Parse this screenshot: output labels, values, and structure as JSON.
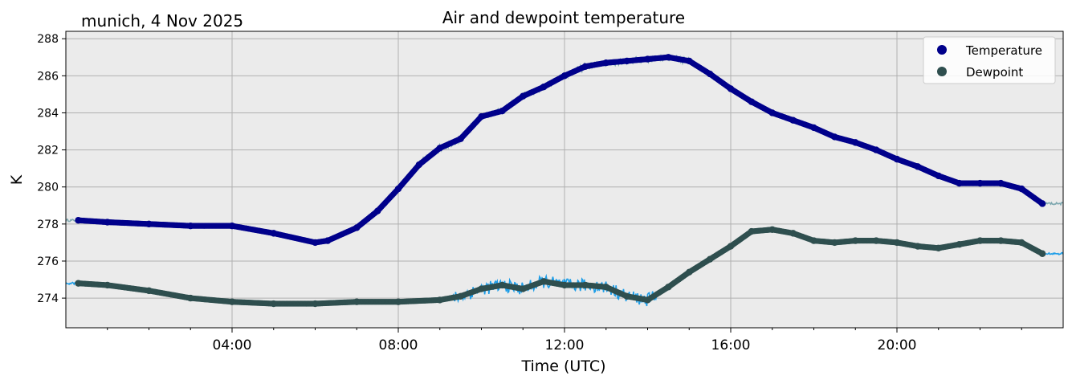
{
  "chart_data": {
    "type": "line",
    "title": "Air and dewpoint temperature",
    "location_label": "munich, 4 Nov 2025",
    "xlabel": "Time (UTC)",
    "ylabel": "K",
    "xlim_hours": [
      0,
      24
    ],
    "ylim": [
      272.4,
      288.4
    ],
    "x_ticks": [
      {
        "hour": 4,
        "label": "04:00"
      },
      {
        "hour": 8,
        "label": "08:00"
      },
      {
        "hour": 12,
        "label": "12:00"
      },
      {
        "hour": 16,
        "label": "16:00"
      },
      {
        "hour": 20,
        "label": "20:00"
      }
    ],
    "y_ticks": [
      274,
      276,
      278,
      280,
      282,
      284,
      286,
      288
    ],
    "grid": true,
    "legend_position": "top-right",
    "series": [
      {
        "name": "Temperature",
        "marker_color": "#00008b",
        "raw_color": "#7fa8b0",
        "x": [
          0.3,
          1,
          2,
          3,
          4,
          5,
          6,
          6.3,
          7,
          7.5,
          8,
          8.5,
          9,
          9.5,
          10,
          10.5,
          11,
          11.5,
          12,
          12.5,
          13,
          13.5,
          14,
          14.5,
          15,
          15.5,
          16,
          16.5,
          17,
          17.5,
          18,
          18.5,
          19,
          19.5,
          20,
          20.5,
          21,
          21.5,
          22,
          22.5,
          23,
          23.5
        ],
        "values": [
          278.2,
          278.1,
          278.0,
          277.9,
          277.9,
          277.5,
          277.0,
          277.1,
          277.8,
          278.7,
          279.9,
          281.2,
          282.1,
          282.6,
          283.8,
          284.1,
          284.9,
          285.4,
          286.0,
          286.5,
          286.7,
          286.8,
          286.9,
          287.0,
          286.8,
          286.1,
          285.3,
          284.6,
          284.0,
          283.6,
          283.2,
          282.7,
          282.4,
          282.0,
          281.5,
          281.1,
          280.6,
          280.2,
          280.2,
          280.2,
          279.9,
          279.1
        ]
      },
      {
        "name": "Dewpoint",
        "marker_color": "#2f4f4f",
        "raw_color": "#1e9ee8",
        "x": [
          0.3,
          1,
          2,
          3,
          4,
          5,
          6,
          7,
          8,
          9,
          9.5,
          10,
          10.5,
          11,
          11.5,
          12,
          12.5,
          13,
          13.5,
          14,
          14.5,
          15,
          15.5,
          16,
          16.5,
          17,
          17.5,
          18,
          18.5,
          19,
          19.5,
          20,
          20.5,
          21,
          21.5,
          22,
          22.5,
          23,
          23.5
        ],
        "values": [
          274.8,
          274.7,
          274.4,
          274.0,
          273.8,
          273.7,
          273.7,
          273.8,
          273.8,
          273.9,
          274.1,
          274.5,
          274.7,
          274.5,
          274.9,
          274.7,
          274.7,
          274.6,
          274.1,
          273.9,
          274.6,
          275.4,
          276.1,
          276.8,
          277.6,
          277.7,
          277.5,
          277.1,
          277.0,
          277.1,
          277.1,
          277.0,
          276.8,
          276.7,
          276.9,
          277.1,
          277.1,
          277.0,
          276.4
        ]
      }
    ]
  }
}
